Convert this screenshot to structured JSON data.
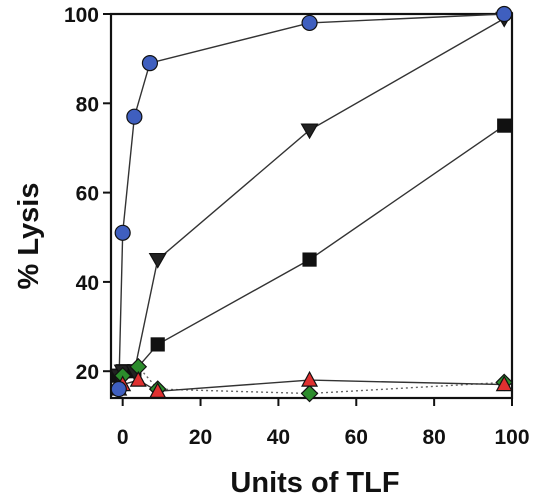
{
  "chart_data": {
    "type": "line",
    "title": "",
    "xlabel": "Units of TLF",
    "ylabel": "% Lysis",
    "xlim": [
      -3,
      100
    ],
    "ylim": [
      14,
      100
    ],
    "xticks": [
      0,
      20,
      40,
      60,
      80,
      100
    ],
    "yticks": [
      20,
      40,
      60,
      80,
      100
    ],
    "grid": false,
    "legend": "none",
    "series": [
      {
        "marker": "circle",
        "color": "#3f5fbf",
        "line": "solid",
        "x": [
          -1,
          0,
          3,
          7,
          48,
          98
        ],
        "y": [
          16,
          51,
          77,
          89,
          98,
          100
        ]
      },
      {
        "marker": "triangle-down",
        "color": "#222222",
        "line": "solid",
        "x": [
          -1,
          0,
          3,
          9,
          48,
          98
        ],
        "y": [
          19,
          20,
          20,
          45,
          74,
          99
        ]
      },
      {
        "marker": "square",
        "color": "#111111",
        "line": "solid",
        "x": [
          -1,
          0,
          3,
          9,
          48,
          98
        ],
        "y": [
          19,
          20,
          20,
          26,
          45,
          75
        ]
      },
      {
        "marker": "diamond",
        "color": "#2c8c2c",
        "line": "dotted",
        "x": [
          -1,
          0,
          4,
          9,
          48,
          98
        ],
        "y": [
          16,
          19,
          21,
          16,
          15,
          17.5
        ]
      },
      {
        "marker": "triangle-up",
        "color": "#e03030",
        "line": "solid",
        "x": [
          -1,
          0,
          4,
          9,
          48,
          98
        ],
        "y": [
          16,
          17,
          18,
          15.5,
          18,
          17
        ]
      }
    ]
  }
}
